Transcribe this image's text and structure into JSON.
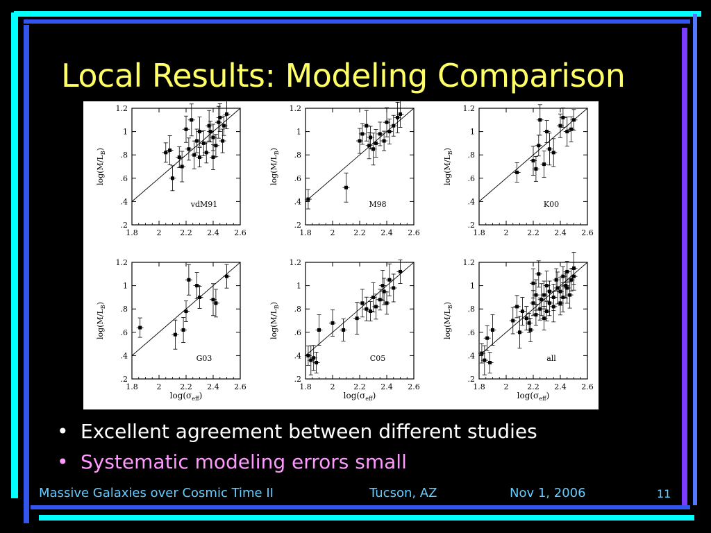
{
  "slide": {
    "title": "Local Results: Modeling Comparison",
    "bullets": [
      {
        "text": "Excellent agreement between different studies",
        "color": "#ffffff"
      },
      {
        "text": "Systematic modeling errors small",
        "color": "#ff99ff"
      }
    ],
    "footer": {
      "conference": "Massive Galaxies over Cosmic Time II",
      "location": "Tucson, AZ",
      "date": "Nov 1, 2006",
      "page": "11"
    },
    "colors": {
      "title": "#ffff66",
      "footer": "#66ccff",
      "frame_cyan": "#00ffff",
      "frame_blue": "#3355ee",
      "frame_purple": "#7a3cff"
    }
  },
  "chart_data": [
    {
      "type": "scatter",
      "panel_label": "vdM91",
      "xlabel": "",
      "ylabel": "log(M/L_B)",
      "xlim": [
        1.8,
        2.6
      ],
      "ylim": [
        0.2,
        1.2
      ],
      "xticks": [
        "1.8",
        "2",
        "2.2",
        "2.4",
        "2.6"
      ],
      "yticks": [
        ".2",
        ".4",
        ".6",
        ".8",
        "1",
        "1.2"
      ],
      "x": [
        2.05,
        2.08,
        2.1,
        2.15,
        2.17,
        2.2,
        2.22,
        2.24,
        2.26,
        2.28,
        2.3,
        2.3,
        2.33,
        2.35,
        2.37,
        2.4,
        2.42,
        2.44,
        2.45,
        2.47,
        2.48,
        2.5,
        2.4,
        2.38
      ],
      "y": [
        0.82,
        0.84,
        0.6,
        0.78,
        0.7,
        1.02,
        0.85,
        1.1,
        0.8,
        0.92,
        0.78,
        1.0,
        0.9,
        0.82,
        1.05,
        0.95,
        0.88,
        1.08,
        1.12,
        0.92,
        1.05,
        1.15,
        0.78,
        1.0
      ]
    },
    {
      "type": "scatter",
      "panel_label": "M98",
      "xlabel": "",
      "ylabel": "log(M/L_B)",
      "xlim": [
        1.8,
        2.6
      ],
      "ylim": [
        0.2,
        1.2
      ],
      "xticks": [
        "1.8",
        "2",
        "2.2",
        "2.4",
        "2.6"
      ],
      "yticks": [
        ".2",
        ".4",
        ".6",
        ".8",
        "1",
        "1.2"
      ],
      "x": [
        1.82,
        2.1,
        2.2,
        2.22,
        2.25,
        2.27,
        2.28,
        2.3,
        2.32,
        2.35,
        2.38,
        2.4,
        2.42,
        2.45,
        2.48,
        2.5
      ],
      "y": [
        0.42,
        0.52,
        0.92,
        0.98,
        1.05,
        0.88,
        0.95,
        0.85,
        0.9,
        0.98,
        0.92,
        1.08,
        1.0,
        1.05,
        1.12,
        1.15
      ]
    },
    {
      "type": "scatter",
      "panel_label": "K00",
      "xlabel": "",
      "ylabel": "log(M/L_B)",
      "xlim": [
        1.8,
        2.6
      ],
      "ylim": [
        0.2,
        1.2
      ],
      "xticks": [
        "1.8",
        "2",
        "2.2",
        "2.4",
        "2.6"
      ],
      "yticks": [
        ".2",
        ".4",
        ".6",
        ".8",
        "1",
        "1.2"
      ],
      "x": [
        2.08,
        2.2,
        2.22,
        2.24,
        2.25,
        2.28,
        2.3,
        2.32,
        2.35,
        2.4,
        2.42,
        2.45,
        2.48,
        2.5
      ],
      "y": [
        0.65,
        0.75,
        0.68,
        0.88,
        1.1,
        0.72,
        1.0,
        0.85,
        0.82,
        1.05,
        1.12,
        1.0,
        1.02,
        1.1
      ]
    },
    {
      "type": "scatter",
      "panel_label": "G03",
      "xlabel": "log(σ_eff)",
      "ylabel": "log(M/L_B)",
      "xlim": [
        1.8,
        2.6
      ],
      "ylim": [
        0.2,
        1.2
      ],
      "xticks": [
        "1.8",
        "2",
        "2.2",
        "2.4",
        "2.6"
      ],
      "yticks": [
        ".2",
        ".4",
        ".6",
        ".8",
        "1",
        "1.2"
      ],
      "x": [
        1.86,
        2.12,
        2.18,
        2.2,
        2.22,
        2.28,
        2.3,
        2.4,
        2.42,
        2.5
      ],
      "y": [
        0.64,
        0.58,
        0.62,
        0.78,
        1.05,
        1.0,
        0.9,
        0.88,
        0.85,
        1.08
      ]
    },
    {
      "type": "scatter",
      "panel_label": "C05",
      "xlabel": "log(σ_eff)",
      "ylabel": "log(M/L_B)",
      "xlim": [
        1.8,
        2.6
      ],
      "ylim": [
        0.2,
        1.2
      ],
      "xticks": [
        "1.8",
        "2",
        "2.2",
        "2.4",
        "2.6"
      ],
      "yticks": [
        ".2",
        ".4",
        ".6",
        ".8",
        "1",
        "1.2"
      ],
      "x": [
        1.82,
        1.84,
        1.86,
        1.88,
        1.9,
        2.0,
        2.08,
        2.18,
        2.22,
        2.25,
        2.28,
        2.3,
        2.32,
        2.35,
        2.37,
        2.38,
        2.4,
        2.42,
        2.45,
        2.5
      ],
      "y": [
        0.4,
        0.36,
        0.38,
        0.34,
        0.62,
        0.68,
        0.62,
        0.72,
        0.85,
        0.8,
        0.78,
        0.9,
        0.82,
        0.88,
        1.0,
        0.95,
        0.85,
        1.05,
        0.98,
        1.12
      ]
    },
    {
      "type": "scatter",
      "panel_label": "all",
      "xlabel": "log(σ_eff)",
      "ylabel": "log(M/L_B)",
      "xlim": [
        1.8,
        2.6
      ],
      "ylim": [
        0.2,
        1.2
      ],
      "xticks": [
        "1.8",
        "2",
        "2.2",
        "2.4",
        "2.6"
      ],
      "yticks": [
        ".2",
        ".4",
        ".6",
        ".8",
        "1",
        "1.2"
      ],
      "x": [
        1.82,
        1.84,
        1.86,
        1.88,
        1.9,
        2.05,
        2.08,
        2.1,
        2.12,
        2.15,
        2.17,
        2.2,
        2.2,
        2.22,
        2.22,
        2.24,
        2.25,
        2.26,
        2.28,
        2.28,
        2.3,
        2.3,
        2.32,
        2.32,
        2.35,
        2.35,
        2.37,
        2.38,
        2.4,
        2.4,
        2.42,
        2.42,
        2.44,
        2.45,
        2.45,
        2.47,
        2.48,
        2.5,
        2.5,
        2.18
      ],
      "y": [
        0.42,
        0.36,
        0.55,
        0.34,
        0.62,
        0.7,
        0.82,
        0.6,
        0.78,
        0.72,
        0.68,
        1.02,
        0.85,
        0.75,
        0.92,
        1.1,
        0.8,
        0.88,
        0.92,
        0.72,
        0.78,
        1.0,
        0.85,
        0.95,
        0.82,
        0.9,
        1.05,
        0.98,
        0.95,
        0.85,
        1.08,
        0.9,
        1.0,
        1.12,
        0.98,
        0.92,
        1.05,
        1.15,
        1.08,
        0.62
      ]
    }
  ]
}
